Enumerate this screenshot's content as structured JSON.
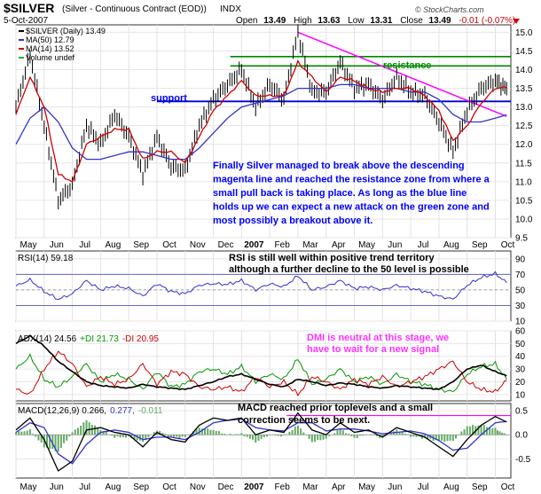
{
  "header": {
    "symbol": "$SILVER",
    "description": "(Silver - Continuous Contract (EOD))",
    "exchange": "INDX",
    "date": "5-Oct-2007",
    "open_label": "Open",
    "open": "13.49",
    "high_label": "High",
    "high": "13.63",
    "low_label": "Low",
    "low": "13.31",
    "close_label": "Close",
    "close": "13.49",
    "change": "-0.01 (-0.07%)",
    "brand": "© StockCharts.com"
  },
  "price_panel": {
    "legend": [
      {
        "text": "$SILVER (Daily) 13.49",
        "color": "#000000"
      },
      {
        "text": "MA(50) 12.79",
        "color": "#3333cc"
      },
      {
        "text": "MA(14) 13.52",
        "color": "#cc0000"
      },
      {
        "text": "Volume undef",
        "color": "#33aa33"
      }
    ],
    "support_label": "support",
    "resistance_label": "resistance",
    "annotation": "Finally Silver managed to break above the descending magenta line and reached the resistance zone from where a small pull back is taking place. As long as the blue line holds up we can expect a new attack on the green zone and most possibly a breakout above it.",
    "annotation_lines": [
      "Finally Silver managed to break above the descending",
      "magenta line and reached the resistance zone from where a",
      "small pull back is taking place. As long as the blue line",
      "holds up we can expect a new attack on the green zone and",
      "most possibly a breakout above it."
    ],
    "support_level": 13.15,
    "resistance_band": [
      14.1,
      14.35
    ]
  },
  "rsi_panel": {
    "label": "RSI(14) 59.18",
    "annotation_lines": [
      "RSI is still well within positive trend territory",
      "although a further decline to the 50 level is possible"
    ]
  },
  "adx_panel": {
    "labels": [
      {
        "text": "ADX(14) 24.56",
        "color": "#000000"
      },
      {
        "text": "+DI 21.73",
        "color": "#009900"
      },
      {
        "text": "-DI 20.95",
        "color": "#cc0000"
      }
    ],
    "annotation_lines": [
      "DMI is neutral at this stage, we",
      "have to wait for a new signal"
    ]
  },
  "macd_panel": {
    "labels": [
      {
        "text": "MACD(12,26,9) 0.266,",
        "color": "#000000"
      },
      {
        "text": "0.277,",
        "color": "#3333cc"
      },
      {
        "text": "-0.011",
        "color": "#66aa66"
      }
    ],
    "annotation_lines": [
      "MACD reached prior toplevels and a small",
      "correction seems to be next."
    ]
  },
  "x_axis": {
    "months": [
      {
        "label": "May",
        "bold": false
      },
      {
        "label": "Jun",
        "bold": false
      },
      {
        "label": "Jul",
        "bold": false
      },
      {
        "label": "Aug",
        "bold": false
      },
      {
        "label": "Sep",
        "bold": false
      },
      {
        "label": "Oct",
        "bold": false
      },
      {
        "label": "Nov",
        "bold": false
      },
      {
        "label": "Dec",
        "bold": false
      },
      {
        "label": "2007",
        "bold": true
      },
      {
        "label": "Feb",
        "bold": false
      },
      {
        "label": "Mar",
        "bold": false
      },
      {
        "label": "Apr",
        "bold": false
      },
      {
        "label": "May",
        "bold": false
      },
      {
        "label": "Jun",
        "bold": false
      },
      {
        "label": "Jul",
        "bold": false
      },
      {
        "label": "Aug",
        "bold": false
      },
      {
        "label": "Sep",
        "bold": false
      },
      {
        "label": "Oct",
        "bold": false
      }
    ]
  },
  "colors": {
    "price": "#000000",
    "ma50": "#3333cc",
    "ma14": "#cc0000",
    "support": "#0000cc",
    "resistance": "#008800",
    "trendline": "#ff00ff",
    "annotation": "#0000ff",
    "dmi_annotation": "#ff33ff",
    "rsi": "#3333cc",
    "adx": "#000000",
    "plus_di": "#009900",
    "minus_di": "#cc0000",
    "macd": "#000000",
    "signal": "#3333cc",
    "histogram": "#66aa66"
  },
  "chart_data": [
    {
      "type": "line",
      "title": "$SILVER (Silver - Continuous Contract (EOD))",
      "ylim": [
        9.5,
        15.2
      ],
      "yticks": [
        9.5,
        10.0,
        10.5,
        11.0,
        11.5,
        12.0,
        12.5,
        13.0,
        13.5,
        14.0,
        14.5,
        15.0
      ],
      "x_months": [
        "May",
        "Jun",
        "Jul",
        "Aug",
        "Sep",
        "Oct",
        "Nov",
        "Dec",
        "2007",
        "Feb",
        "Mar",
        "Apr",
        "May",
        "Jun",
        "Jul",
        "Aug",
        "Sep",
        "Oct"
      ],
      "x": [
        0,
        0.5,
        1,
        1.5,
        2,
        2.5,
        3,
        3.5,
        4,
        4.5,
        5,
        5.5,
        6,
        6.5,
        7,
        7.5,
        8,
        8.5,
        9,
        9.5,
        10,
        10.5,
        11,
        11.5,
        12,
        12.5,
        13,
        13.5,
        14,
        14.5,
        15,
        15.5,
        16,
        16.5,
        17,
        17.4
      ],
      "series": [
        {
          "name": "$SILVER (Daily)",
          "values": [
            13.0,
            14.4,
            12.5,
            10.5,
            10.9,
            12.5,
            12.0,
            12.8,
            12.2,
            11.2,
            12.2,
            11.4,
            11.3,
            12.5,
            13.2,
            13.6,
            14.0,
            13.0,
            13.6,
            13.2,
            15.0,
            13.4,
            13.4,
            14.2,
            13.5,
            13.6,
            13.2,
            13.8,
            13.4,
            13.3,
            12.6,
            11.8,
            12.9,
            13.5,
            13.7,
            13.49
          ]
        },
        {
          "name": "MA(50)",
          "values": [
            12.0,
            12.7,
            13.0,
            12.6,
            11.9,
            11.6,
            11.6,
            11.7,
            11.8,
            11.8,
            11.7,
            11.6,
            11.6,
            11.9,
            12.3,
            12.7,
            13.0,
            13.1,
            13.2,
            13.3,
            13.5,
            13.5,
            13.5,
            13.6,
            13.6,
            13.5,
            13.5,
            13.5,
            13.4,
            13.4,
            13.2,
            12.8,
            12.6,
            12.6,
            12.7,
            12.79
          ]
        },
        {
          "name": "MA(14)",
          "values": [
            12.8,
            13.8,
            13.0,
            11.2,
            11.0,
            12.0,
            12.2,
            12.4,
            12.4,
            11.6,
            11.8,
            11.8,
            11.5,
            12.2,
            12.9,
            13.3,
            13.7,
            13.3,
            13.3,
            13.3,
            14.2,
            13.8,
            13.4,
            13.8,
            13.7,
            13.5,
            13.4,
            13.5,
            13.5,
            13.3,
            12.9,
            12.1,
            12.5,
            13.1,
            13.5,
            13.52
          ]
        }
      ],
      "support": 13.15,
      "resistance_band": [
        14.1,
        14.35
      ],
      "trendline": [
        {
          "x": 10.0,
          "y": 15.0
        },
        {
          "x": 17.4,
          "y": 12.75
        }
      ]
    },
    {
      "type": "line",
      "title": "RSI(14)",
      "ylim": [
        10,
        100
      ],
      "yticks": [
        10,
        30,
        50,
        70,
        90
      ],
      "reference_lines": [
        30,
        50,
        70
      ],
      "x": [
        0,
        0.5,
        1,
        1.5,
        2,
        2.5,
        3,
        3.5,
        4,
        4.5,
        5,
        5.5,
        6,
        6.5,
        7,
        7.5,
        8,
        8.5,
        9,
        9.5,
        10,
        10.5,
        11,
        11.5,
        12,
        12.5,
        13,
        13.5,
        14,
        14.5,
        15,
        15.5,
        16,
        16.5,
        17,
        17.4
      ],
      "series": [
        {
          "name": "RSI(14)",
          "values": [
            55,
            63,
            48,
            38,
            45,
            62,
            50,
            55,
            52,
            42,
            58,
            48,
            45,
            56,
            58,
            57,
            62,
            50,
            58,
            54,
            68,
            50,
            54,
            62,
            52,
            54,
            50,
            56,
            52,
            48,
            42,
            38,
            56,
            66,
            71,
            59.18
          ]
        }
      ]
    },
    {
      "type": "line",
      "title": "ADX(14)",
      "ylim": [
        5,
        60
      ],
      "yticks": [
        10,
        20,
        30,
        40,
        50,
        60
      ],
      "x": [
        0,
        0.5,
        1,
        1.5,
        2,
        2.5,
        3,
        3.5,
        4,
        4.5,
        5,
        5.5,
        6,
        6.5,
        7,
        7.5,
        8,
        8.5,
        9,
        9.5,
        10,
        10.5,
        11,
        11.5,
        12,
        12.5,
        13,
        13.5,
        14,
        14.5,
        15,
        15.5,
        16,
        16.5,
        17,
        17.4
      ],
      "series": [
        {
          "name": "ADX(14)",
          "values": [
            50,
            56,
            48,
            36,
            28,
            20,
            17,
            16,
            15,
            18,
            16,
            15,
            14,
            17,
            20,
            24,
            26,
            22,
            18,
            16,
            22,
            20,
            17,
            19,
            18,
            16,
            15,
            17,
            16,
            15,
            14,
            20,
            30,
            33,
            28,
            24.56
          ]
        },
        {
          "name": "+DI",
          "values": [
            30,
            40,
            22,
            16,
            24,
            34,
            20,
            26,
            22,
            14,
            28,
            16,
            18,
            28,
            30,
            26,
            32,
            20,
            26,
            22,
            38,
            18,
            22,
            30,
            20,
            24,
            18,
            26,
            20,
            18,
            14,
            12,
            26,
            32,
            34,
            21.73
          ]
        },
        {
          "name": "-DI",
          "values": [
            14,
            10,
            30,
            44,
            34,
            16,
            24,
            18,
            22,
            34,
            18,
            28,
            26,
            16,
            14,
            16,
            12,
            24,
            16,
            20,
            10,
            24,
            20,
            14,
            22,
            18,
            24,
            16,
            20,
            24,
            30,
            36,
            20,
            14,
            12,
            20.95
          ]
        }
      ]
    },
    {
      "type": "line",
      "title": "MACD(12,26,9)",
      "ylim": [
        -0.9,
        0.65
      ],
      "yticks": [
        -0.5,
        0.0,
        0.5
      ],
      "reference_line": 0.4,
      "x": [
        0,
        0.5,
        1,
        1.5,
        2,
        2.5,
        3,
        3.5,
        4,
        4.5,
        5,
        5.5,
        6,
        6.5,
        7,
        7.5,
        8,
        8.5,
        9,
        9.5,
        10,
        10.5,
        11,
        11.5,
        12,
        12.5,
        13,
        13.5,
        14,
        14.5,
        15,
        15.5,
        16,
        16.5,
        17,
        17.4
      ],
      "series": [
        {
          "name": "MACD",
          "values": [
            0.1,
            0.35,
            -0.1,
            -0.75,
            -0.55,
            0.1,
            0.15,
            0.05,
            0.0,
            -0.25,
            0.05,
            -0.1,
            -0.15,
            0.2,
            0.35,
            0.3,
            0.35,
            0.0,
            0.1,
            0.05,
            0.45,
            0.1,
            0.0,
            0.25,
            0.05,
            0.1,
            -0.05,
            0.15,
            0.05,
            -0.05,
            -0.25,
            -0.45,
            -0.1,
            0.2,
            0.38,
            0.266
          ]
        },
        {
          "name": "Signal",
          "values": [
            0.05,
            0.25,
            0.15,
            -0.4,
            -0.6,
            -0.2,
            0.05,
            0.1,
            0.05,
            -0.1,
            -0.05,
            -0.05,
            -0.1,
            0.05,
            0.25,
            0.3,
            0.33,
            0.15,
            0.1,
            0.08,
            0.25,
            0.25,
            0.08,
            0.12,
            0.12,
            0.08,
            0.02,
            0.05,
            0.08,
            0.02,
            -0.12,
            -0.32,
            -0.28,
            0.0,
            0.25,
            0.277
          ]
        },
        {
          "name": "Histogram",
          "values": [
            0.05,
            0.1,
            -0.25,
            -0.35,
            0.05,
            0.3,
            0.1,
            -0.05,
            -0.05,
            -0.15,
            0.1,
            -0.05,
            -0.05,
            0.15,
            0.1,
            0.0,
            0.02,
            -0.15,
            0.0,
            -0.03,
            0.2,
            -0.15,
            -0.08,
            0.13,
            -0.07,
            0.02,
            -0.07,
            0.1,
            -0.03,
            -0.07,
            -0.13,
            -0.13,
            0.18,
            0.2,
            0.13,
            -0.011
          ]
        }
      ]
    }
  ]
}
